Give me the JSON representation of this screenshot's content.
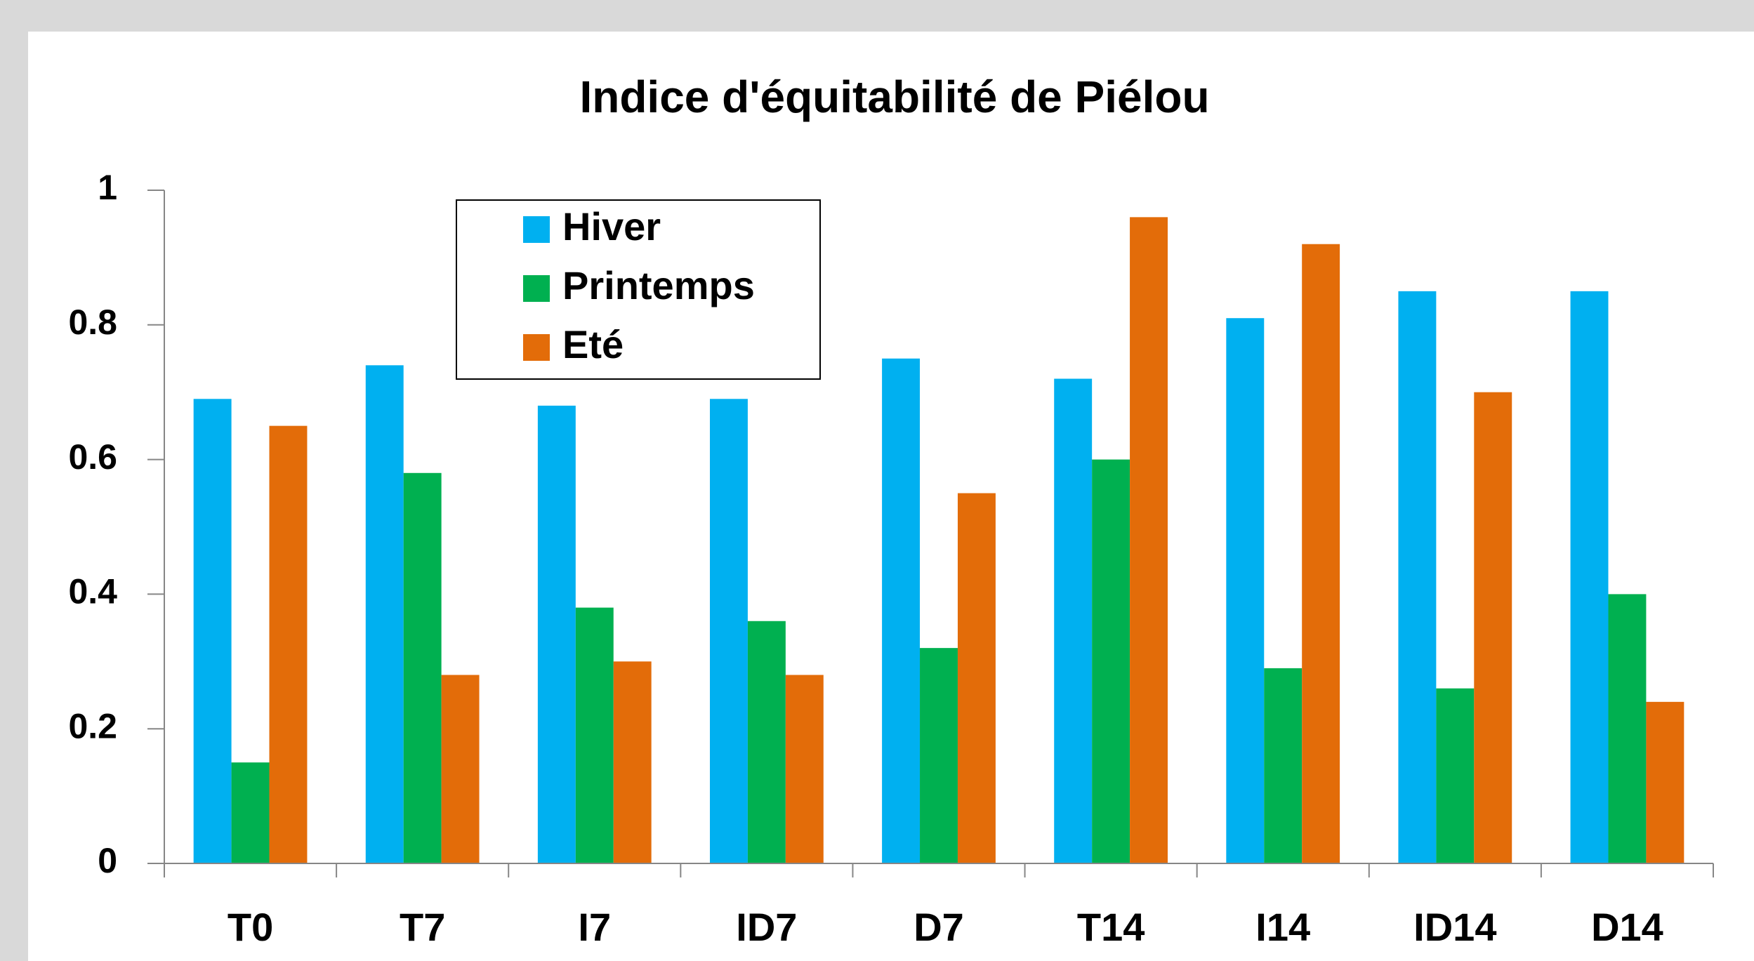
{
  "chart_data": {
    "type": "bar",
    "title": "Indice d'équitabilité de Piélou",
    "categories": [
      "T0",
      "T7",
      "I7",
      "ID7",
      "D7",
      "T14",
      "I14",
      "ID14",
      "D14"
    ],
    "series": [
      {
        "name": "Hiver",
        "color": "#00b0f0",
        "values": [
          0.69,
          0.74,
          0.68,
          0.69,
          0.75,
          0.72,
          0.81,
          0.85,
          0.85
        ]
      },
      {
        "name": "Printemps",
        "color": "#00b050",
        "values": [
          0.15,
          0.58,
          0.38,
          0.36,
          0.32,
          0.6,
          0.29,
          0.26,
          0.4
        ]
      },
      {
        "name": "Eté",
        "color": "#e36c09",
        "values": [
          0.65,
          0.28,
          0.3,
          0.28,
          0.55,
          0.96,
          0.92,
          0.7,
          0.24
        ]
      }
    ],
    "ylim": [
      0,
      1
    ],
    "yticks": [
      0,
      0.2,
      0.4,
      0.6,
      0.8,
      1
    ],
    "grid": false,
    "legend": "top-left"
  }
}
